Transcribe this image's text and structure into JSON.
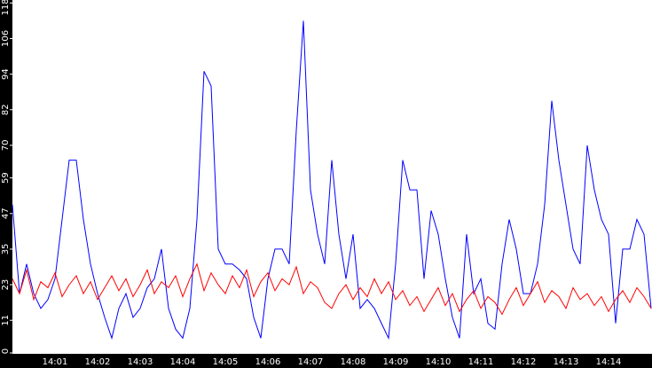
{
  "chart_data": {
    "type": "line",
    "categories": [
      null,
      null,
      null,
      null,
      null,
      null,
      "14:01",
      null,
      null,
      null,
      null,
      null,
      "14:02",
      null,
      null,
      null,
      null,
      null,
      "14:03",
      null,
      null,
      null,
      null,
      null,
      "14:04",
      null,
      null,
      null,
      null,
      null,
      "14:05",
      null,
      null,
      null,
      null,
      null,
      "14:06",
      null,
      null,
      null,
      null,
      null,
      "14:07",
      null,
      null,
      null,
      null,
      null,
      "14:08",
      null,
      null,
      null,
      null,
      null,
      "14:09",
      null,
      null,
      null,
      null,
      null,
      "14:10",
      null,
      null,
      null,
      null,
      null,
      "14:11",
      null,
      null,
      null,
      null,
      null,
      "14:12",
      null,
      null,
      null,
      null,
      null,
      "14:13",
      null,
      null,
      null,
      null,
      null,
      "14:14",
      null,
      null,
      null,
      null,
      null,
      null
    ],
    "series": [
      {
        "color": "#0000ff",
        "values": [
          50,
          20,
          30,
          20,
          15,
          18,
          25,
          45,
          65,
          65,
          45,
          30,
          20,
          12,
          5,
          15,
          20,
          12,
          15,
          22,
          25,
          35,
          15,
          8,
          5,
          15,
          45,
          95,
          90,
          35,
          30,
          30,
          28,
          25,
          12,
          5,
          25,
          35,
          35,
          30,
          75,
          112,
          55,
          40,
          30,
          65,
          40,
          25,
          40,
          15,
          18,
          15,
          10,
          5,
          30,
          65,
          55,
          55,
          25,
          48,
          40,
          25,
          12,
          5,
          40,
          20,
          25,
          10,
          8,
          30,
          45,
          35,
          20,
          20,
          30,
          50,
          85,
          65,
          50,
          35,
          30,
          70,
          55,
          45,
          40,
          10,
          35,
          35,
          45,
          40,
          15
        ]
      },
      {
        "color": "#ff0000",
        "values": [
          25,
          20,
          28,
          18,
          24,
          22,
          27,
          19,
          23,
          26,
          20,
          24,
          18,
          22,
          26,
          21,
          25,
          19,
          23,
          28,
          20,
          24,
          22,
          26,
          19,
          25,
          30,
          21,
          27,
          23,
          20,
          26,
          22,
          28,
          19,
          24,
          27,
          21,
          25,
          23,
          29,
          20,
          24,
          22,
          17,
          15,
          20,
          23,
          18,
          22,
          19,
          25,
          20,
          24,
          18,
          21,
          16,
          19,
          14,
          18,
          22,
          16,
          20,
          14,
          18,
          21,
          15,
          19,
          17,
          13,
          18,
          22,
          16,
          20,
          24,
          17,
          21,
          19,
          15,
          22,
          18,
          20,
          16,
          19,
          14,
          18,
          21,
          17,
          22,
          19,
          15
        ]
      }
    ],
    "ylim": [
      0,
      119
    ],
    "yticks": [
      0,
      11,
      23,
      35,
      47,
      59,
      70,
      82,
      94,
      106,
      118
    ]
  }
}
